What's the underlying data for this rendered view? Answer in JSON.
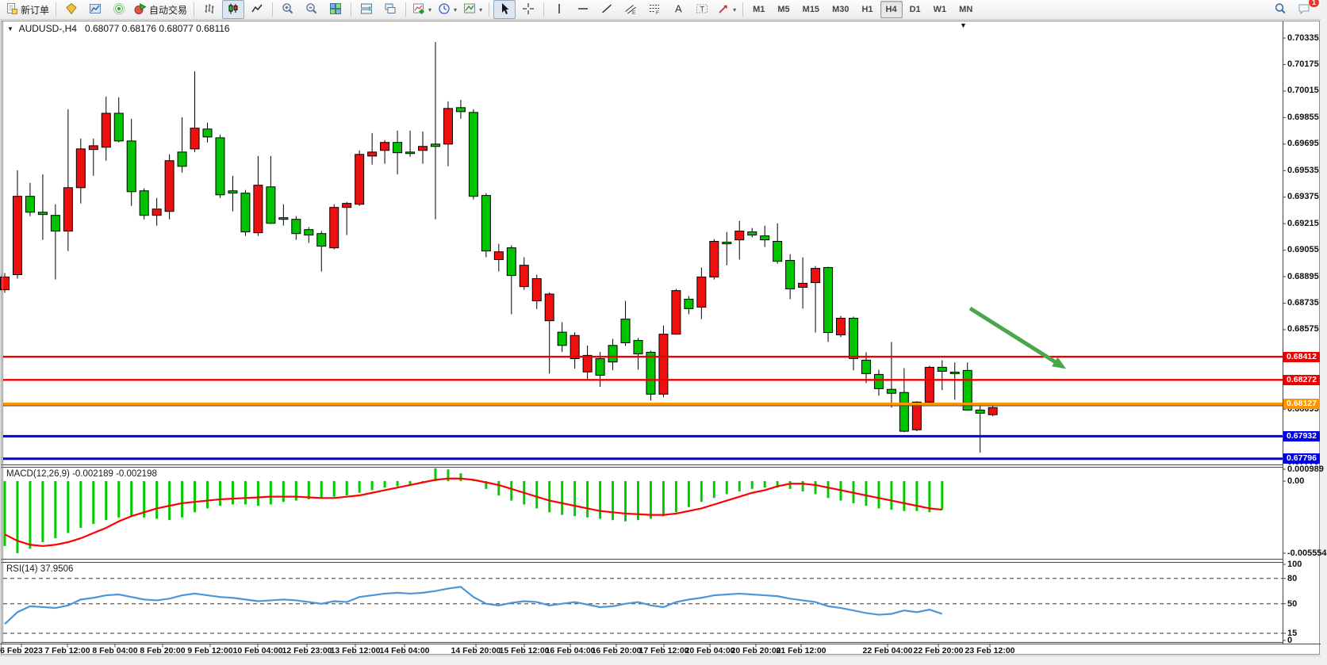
{
  "toolbar": {
    "new_order_label": "新订单",
    "autotrade_label": "自动交易",
    "groups": [
      [
        {
          "icon": "new-order",
          "label": "new_order"
        }
      ],
      [
        {
          "icon": "metaeditor"
        },
        {
          "icon": "market-watch"
        },
        {
          "icon": "signals"
        },
        {
          "icon": "autotrade",
          "label": "autotrade"
        }
      ],
      [
        {
          "icon": "bar-chart"
        },
        {
          "icon": "candlestick",
          "pressed": true
        },
        {
          "icon": "line-chart"
        }
      ],
      [
        {
          "icon": "zoom-in"
        },
        {
          "icon": "zoom-out"
        },
        {
          "icon": "tile-windows"
        }
      ],
      [
        {
          "icon": "arrange-windows"
        },
        {
          "icon": "arrange-cascade"
        }
      ],
      [
        {
          "icon": "indicators",
          "dropdown": true
        },
        {
          "icon": "periods",
          "dropdown": true
        },
        {
          "icon": "templates",
          "dropdown": true
        }
      ],
      [
        {
          "icon": "cursor",
          "pressed": true
        },
        {
          "icon": "crosshair"
        }
      ],
      [
        {
          "icon": "vline"
        },
        {
          "icon": "hline"
        },
        {
          "icon": "trendline"
        },
        {
          "icon": "channel"
        },
        {
          "icon": "fibonacci"
        },
        {
          "icon": "text"
        },
        {
          "icon": "text-label"
        },
        {
          "icon": "arrows",
          "dropdown": true
        }
      ]
    ],
    "timeframes": [
      "M1",
      "M5",
      "M15",
      "M30",
      "H1",
      "H4",
      "D1",
      "W1",
      "MN"
    ],
    "active_timeframe": "H4",
    "chat_badge": "1"
  },
  "chart": {
    "title_symbol": "AUDUSD-,H4",
    "title_ohlc": "0.68077 0.68176 0.68077 0.68116",
    "macd_title": "MACD(12,26,9) -0.002189 -0.002198",
    "rsi_title": "RSI(14) 37.9506"
  },
  "chart_data": {
    "type": "candlestick",
    "symbol": "AUDUSD-",
    "timeframe": "H4",
    "current_ohlc": {
      "open": 0.68077,
      "high": 0.68176,
      "low": 0.68077,
      "close": 0.68116
    },
    "y_ticks": [
      0.70335,
      0.70175,
      0.70015,
      0.69855,
      0.69695,
      0.69535,
      0.69375,
      0.69215,
      0.69055,
      0.68895,
      0.68735,
      0.68575,
      0.68415,
      0.68255,
      0.68095,
      0.67935,
      0.67775
    ],
    "x_labels": [
      {
        "t": "6 Feb 2023",
        "x": 27
      },
      {
        "t": "7 Feb 12:00",
        "x": 85
      },
      {
        "t": "8 Feb 04:00",
        "x": 145
      },
      {
        "t": "8 Feb 20:00",
        "x": 205
      },
      {
        "t": "9 Feb 12:00",
        "x": 265
      },
      {
        "t": "10 Feb 04:00",
        "x": 325
      },
      {
        "t": "12 Feb 23:00",
        "x": 387
      },
      {
        "t": "13 Feb 12:00",
        "x": 448
      },
      {
        "t": "14 Feb 04:00",
        "x": 510
      },
      {
        "t": "14 Feb 20:00",
        "x": 600
      },
      {
        "t": "15 Feb 12:00",
        "x": 661
      },
      {
        "t": "16 Feb 04:00",
        "x": 719
      },
      {
        "t": "16 Feb 20:00",
        "x": 777
      },
      {
        "t": "17 Feb 12:00",
        "x": 837
      },
      {
        "t": "20 Feb 04:00",
        "x": 895
      },
      {
        "t": "20 Feb 20:00",
        "x": 953
      },
      {
        "t": "21 Feb 12:00",
        "x": 1010
      },
      {
        "t": "22 Feb 04:00",
        "x": 1119
      },
      {
        "t": "22 Feb 20:00",
        "x": 1183
      },
      {
        "t": "23 Feb 12:00",
        "x": 1248
      }
    ],
    "price_lines": [
      {
        "price": 0.68412,
        "label": "0.68412",
        "color": "#ee0000",
        "width": 2.4
      },
      {
        "price": 0.68272,
        "label": "0.68272",
        "color": "#ee0000",
        "width": 2.4
      },
      {
        "price": 0.68127,
        "label": "0.68127",
        "color": "#ff9400",
        "width": 3.2
      },
      {
        "price": 0.68116,
        "label": "",
        "color": "#4a4a4a",
        "width": 1.1
      },
      {
        "price": 0.67932,
        "label": "0.67932",
        "color": "#0000e6",
        "width": 3
      },
      {
        "price": 0.67796,
        "label": "0.67796",
        "color": "#0000e6",
        "width": 3
      }
    ],
    "candles": [
      [
        0.68893,
        0.68816,
        0.68917,
        0.68797,
        "r"
      ],
      [
        0.6938,
        0.68907,
        0.69537,
        0.68883,
        "r"
      ],
      [
        0.6938,
        0.69284,
        0.69461,
        0.6926,
        "g"
      ],
      [
        0.69284,
        0.6927,
        0.69513,
        0.69117,
        "g"
      ],
      [
        0.69265,
        0.6917,
        0.69332,
        0.68878,
        "g"
      ],
      [
        0.69432,
        0.6917,
        0.69905,
        0.6905,
        "r"
      ],
      [
        0.69666,
        0.69432,
        0.69728,
        0.69337,
        "r"
      ],
      [
        0.69685,
        0.69662,
        0.69728,
        0.69504,
        "r"
      ],
      [
        0.69881,
        0.69676,
        0.69982,
        0.69595,
        "r"
      ],
      [
        0.69881,
        0.69714,
        0.69977,
        0.69705,
        "g"
      ],
      [
        0.69714,
        0.69408,
        0.69848,
        0.69322,
        "g"
      ],
      [
        0.69413,
        0.69265,
        0.69428,
        0.69241,
        "g"
      ],
      [
        0.69303,
        0.69265,
        0.6937,
        0.69203,
        "r"
      ],
      [
        0.69595,
        0.69289,
        0.69633,
        0.69241,
        "r"
      ],
      [
        0.69647,
        0.69561,
        0.69857,
        0.69523,
        "g"
      ],
      [
        0.69791,
        0.69666,
        0.70134,
        0.69647,
        "r"
      ],
      [
        0.69786,
        0.69738,
        0.69824,
        0.69705,
        "g"
      ],
      [
        0.69733,
        0.69389,
        0.69752,
        0.6937,
        "g"
      ],
      [
        0.69413,
        0.69399,
        0.69504,
        0.69289,
        "g"
      ],
      [
        0.69399,
        0.69165,
        0.69418,
        0.69141,
        "g"
      ],
      [
        0.69447,
        0.6916,
        0.69623,
        0.69141,
        "r"
      ],
      [
        0.69437,
        0.69217,
        0.69623,
        0.69213,
        "g"
      ],
      [
        0.69251,
        0.69241,
        0.69332,
        0.69203,
        "g"
      ],
      [
        0.69241,
        0.69155,
        0.6926,
        0.69117,
        "g"
      ],
      [
        0.69179,
        0.69146,
        0.69194,
        0.69098,
        "g"
      ],
      [
        0.69155,
        0.69079,
        0.6917,
        0.68926,
        "g"
      ],
      [
        0.69313,
        0.69069,
        0.69332,
        0.6906,
        "r"
      ],
      [
        0.69337,
        0.69313,
        0.69346,
        0.69146,
        "r"
      ],
      [
        0.69633,
        0.69332,
        0.69657,
        0.69322,
        "r"
      ],
      [
        0.69647,
        0.69623,
        0.69762,
        0.69571,
        "r"
      ],
      [
        0.69705,
        0.69657,
        0.69719,
        0.69576,
        "r"
      ],
      [
        0.69705,
        0.69643,
        0.69776,
        0.69513,
        "g"
      ],
      [
        0.69647,
        0.69638,
        0.69776,
        0.69619,
        "g"
      ],
      [
        0.69681,
        0.69657,
        0.69771,
        0.69576,
        "r"
      ],
      [
        0.69695,
        0.69681,
        0.70311,
        0.69241,
        "g"
      ],
      [
        0.6991,
        0.69695,
        0.69953,
        0.69561,
        "r"
      ],
      [
        0.69915,
        0.69891,
        0.69962,
        0.69848,
        "g"
      ],
      [
        0.69886,
        0.6938,
        0.69905,
        0.69361,
        "g"
      ],
      [
        0.69385,
        0.6905,
        0.69399,
        0.69012,
        "g"
      ],
      [
        0.69045,
        0.68998,
        0.69093,
        0.68926,
        "r"
      ],
      [
        0.69069,
        0.68902,
        0.69084,
        0.68668,
        "g"
      ],
      [
        0.68964,
        0.68835,
        0.69012,
        0.68816,
        "r"
      ],
      [
        0.68883,
        0.68749,
        0.68907,
        0.687,
        "r"
      ],
      [
        0.6879,
        0.68629,
        0.688,
        0.6831,
        "r"
      ],
      [
        0.6856,
        0.6848,
        0.6862,
        0.6844,
        "g"
      ],
      [
        0.6854,
        0.684,
        0.6856,
        0.6834,
        "r"
      ],
      [
        0.6842,
        0.6832,
        0.6848,
        0.6827,
        "r"
      ],
      [
        0.684,
        0.683,
        0.6844,
        0.6823,
        "g"
      ],
      [
        0.6848,
        0.6838,
        0.6852,
        0.6833,
        "g"
      ],
      [
        0.68639,
        0.68496,
        0.68749,
        0.68477,
        "g"
      ],
      [
        0.6851,
        0.68429,
        0.68525,
        0.68334,
        "g"
      ],
      [
        0.68439,
        0.68186,
        0.68448,
        0.68148,
        "g"
      ],
      [
        0.68548,
        0.68186,
        0.686,
        0.68167,
        "r"
      ],
      [
        0.68811,
        0.68548,
        0.68821,
        0.68544,
        "r"
      ],
      [
        0.68759,
        0.68702,
        0.68778,
        0.68668,
        "g"
      ],
      [
        0.68893,
        0.68711,
        0.6895,
        0.68639,
        "r"
      ],
      [
        0.69108,
        0.68893,
        0.69122,
        0.68878,
        "r"
      ],
      [
        0.69103,
        0.69093,
        0.69165,
        0.68964,
        "g"
      ],
      [
        0.6917,
        0.69117,
        0.69232,
        0.68998,
        "r"
      ],
      [
        0.69165,
        0.69146,
        0.69189,
        0.69132,
        "g"
      ],
      [
        0.69141,
        0.69117,
        0.69203,
        0.69074,
        "g"
      ],
      [
        0.69108,
        0.68988,
        0.69217,
        0.68974,
        "g"
      ],
      [
        0.68993,
        0.68821,
        0.69031,
        0.68759,
        "g"
      ],
      [
        0.68855,
        0.68831,
        0.69012,
        0.68702,
        "r"
      ],
      [
        0.68945,
        0.68859,
        0.68959,
        0.68558,
        "r"
      ],
      [
        0.6895,
        0.68558,
        0.68955,
        0.68501,
        "g"
      ],
      [
        0.68644,
        0.68544,
        0.68658,
        0.6853,
        "r"
      ],
      [
        0.68644,
        0.68401,
        0.68654,
        0.68329,
        "g"
      ],
      [
        0.68391,
        0.6831,
        0.68439,
        0.68253,
        "g"
      ],
      [
        0.68305,
        0.68219,
        0.68334,
        0.68176,
        "g"
      ],
      [
        0.68215,
        0.68191,
        0.68501,
        0.68105,
        "g"
      ],
      [
        0.68196,
        0.67962,
        0.68343,
        0.67957,
        "g"
      ],
      [
        0.68138,
        0.67971,
        0.68143,
        0.67962,
        "r"
      ],
      [
        0.68348,
        0.68138,
        0.68357,
        0.68129,
        "r"
      ],
      [
        0.68348,
        0.68324,
        0.68391,
        0.6821,
        "g"
      ],
      [
        0.68319,
        0.6831,
        0.68377,
        0.68152,
        "g"
      ],
      [
        0.68329,
        0.6809,
        0.68377,
        0.68086,
        "g"
      ],
      [
        0.6809,
        0.68071,
        0.68114,
        0.67833,
        "g"
      ],
      [
        0.68105,
        0.68062,
        0.68119,
        0.68052,
        "r"
      ]
    ],
    "macd": {
      "label": "MACD(12,26,9)",
      "values": "-0.002189 -0.002198",
      "axis_ticks": [
        "0.000989",
        "0.00",
        "-0.005554"
      ],
      "histogram": [
        -0.005,
        -0.00555,
        -0.0052,
        -0.0047,
        -0.0044,
        -0.004,
        -0.0036,
        -0.0033,
        -0.003,
        -0.0028,
        -0.0027,
        -0.0028,
        -0.0029,
        -0.003,
        -0.0028,
        -0.0024,
        -0.0021,
        -0.0019,
        -0.0018,
        -0.0018,
        -0.0019,
        -0.0018,
        -0.0016,
        -0.0015,
        -0.0014,
        -0.0013,
        -0.0012,
        -0.0011,
        -0.0009,
        -0.0007,
        -0.0005,
        -0.0004,
        -0.0003,
        -0.0001,
        0.00099,
        0.0009,
        0.0006,
        0.0001,
        -0.0006,
        -0.0011,
        -0.0015,
        -0.0018,
        -0.0021,
        -0.0024,
        -0.0026,
        -0.0027,
        -0.0028,
        -0.0029,
        -0.003,
        -0.0031,
        -0.003,
        -0.0029,
        -0.0027,
        -0.0024,
        -0.002,
        -0.0016,
        -0.0013,
        -0.001,
        -0.0008,
        -0.0006,
        -0.0005,
        -0.0005,
        -0.0006,
        -0.0008,
        -0.001,
        -0.0013,
        -0.0015,
        -0.0017,
        -0.0019,
        -0.0021,
        -0.0022,
        -0.0023,
        -0.0023,
        -0.0024,
        -0.00219
      ],
      "signal": [
        -0.0041,
        -0.0046,
        -0.0049,
        -0.005,
        -0.0049,
        -0.0047,
        -0.0044,
        -0.004,
        -0.0036,
        -0.0031,
        -0.0027,
        -0.0024,
        -0.0021,
        -0.0019,
        -0.0017,
        -0.0016,
        -0.0015,
        -0.0014,
        -0.00135,
        -0.0013,
        -0.00125,
        -0.0012,
        -0.0012,
        -0.0012,
        -0.00125,
        -0.0013,
        -0.0013,
        -0.0012,
        -0.0011,
        -0.0009,
        -0.0007,
        -0.0005,
        -0.0003,
        -0.0001,
        0.0001,
        0.0002,
        0.0002,
        0.0001,
        -0.0001,
        -0.0003,
        -0.0006,
        -0.0009,
        -0.0012,
        -0.0015,
        -0.0017,
        -0.0019,
        -0.0021,
        -0.0023,
        -0.0024,
        -0.0025,
        -0.00255,
        -0.0026,
        -0.0026,
        -0.0025,
        -0.0023,
        -0.0021,
        -0.0018,
        -0.0015,
        -0.0012,
        -0.0009,
        -0.0007,
        -0.0004,
        -0.0002,
        -0.0002,
        -0.0003,
        -0.0005,
        -0.0007,
        -0.0009,
        -0.0011,
        -0.0013,
        -0.0015,
        -0.0017,
        -0.0019,
        -0.0021,
        -0.0022
      ]
    },
    "rsi": {
      "label": "RSI(14)",
      "value": "37.9506",
      "axis_ticks": [
        100,
        80,
        50,
        15,
        0
      ],
      "dashed_levels": [
        80,
        50,
        15
      ],
      "series": [
        26,
        40,
        47,
        46,
        45,
        48,
        55,
        57,
        60,
        61,
        58,
        55,
        54,
        56,
        60,
        62,
        60,
        58,
        57,
        55,
        53,
        54,
        55,
        54,
        52,
        50,
        53,
        52,
        58,
        60,
        62,
        63,
        62,
        63,
        65,
        68,
        70,
        58,
        50,
        48,
        51,
        53,
        52,
        48,
        50,
        52,
        49,
        46,
        47,
        50,
        52,
        48,
        46,
        52,
        55,
        57,
        60,
        61,
        62,
        61,
        60,
        59,
        56,
        54,
        52,
        47,
        45,
        42,
        39,
        37,
        38,
        42,
        40,
        43,
        38
      ]
    },
    "arrow_annotation": {
      "x1": 1223,
      "y1": 389,
      "x2": 1334,
      "y2": 459,
      "color": "#4CA64C"
    },
    "colors": {
      "bull": "#00c400",
      "bear": "#ee1010",
      "wick": "#000000",
      "macd_hist": "#00cc00",
      "macd_signal": "#ff0000",
      "rsi_line": "#4a96d8"
    }
  }
}
